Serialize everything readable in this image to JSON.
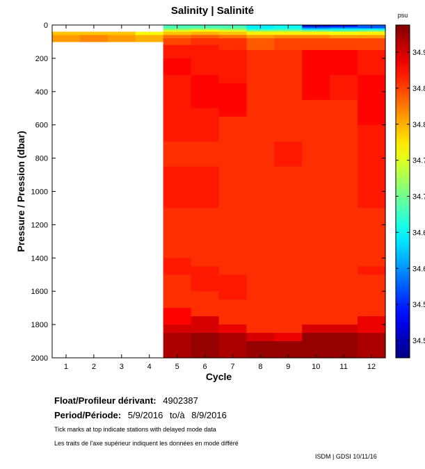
{
  "chart_data": {
    "type": "heatmap",
    "title": "Salinity | Salinité",
    "xlabel": "Cycle",
    "ylabel": "Pressure / Pression (dbar)",
    "colorbar_unit": "psu",
    "x": [
      1,
      2,
      3,
      4,
      5,
      6,
      7,
      8,
      9,
      10,
      11,
      12
    ],
    "xlim": [
      0.5,
      12.5
    ],
    "ylim": [
      0,
      2000
    ],
    "y_inverted": true,
    "y_ticks": [
      0,
      200,
      400,
      600,
      800,
      1000,
      1200,
      1400,
      1600,
      1800,
      2000
    ],
    "colorbar_tick_labels": [
      "34.9",
      "34.8",
      "34.8",
      "34.7",
      "34.7",
      "34.6",
      "34.6",
      "34.5",
      "34.5"
    ],
    "colorbar_range": [
      34.5,
      34.97
    ],
    "grid": false,
    "columns": [
      {
        "cycle": 1,
        "segments": [
          [
            40,
            60,
            34.82
          ],
          [
            60,
            100,
            34.84
          ]
        ]
      },
      {
        "cycle": 2,
        "segments": [
          [
            40,
            60,
            34.82
          ],
          [
            60,
            100,
            34.85
          ]
        ]
      },
      {
        "cycle": 3,
        "segments": [
          [
            40,
            60,
            34.82
          ],
          [
            60,
            100,
            34.84
          ]
        ]
      },
      {
        "cycle": 4,
        "segments": [
          [
            40,
            60,
            34.79
          ],
          [
            60,
            100,
            34.83
          ]
        ]
      },
      {
        "cycle": 5,
        "segments": [
          [
            0,
            20,
            34.71
          ],
          [
            20,
            30,
            34.74
          ],
          [
            30,
            40,
            34.78
          ],
          [
            40,
            60,
            34.82
          ],
          [
            60,
            80,
            34.86
          ],
          [
            80,
            120,
            34.88
          ],
          [
            120,
            200,
            34.9
          ],
          [
            200,
            300,
            34.91
          ],
          [
            300,
            450,
            34.9
          ],
          [
            450,
            700,
            34.9
          ],
          [
            700,
            850,
            34.89
          ],
          [
            850,
            1100,
            34.9
          ],
          [
            1100,
            1400,
            34.89
          ],
          [
            1400,
            1500,
            34.9
          ],
          [
            1500,
            1700,
            34.89
          ],
          [
            1700,
            1800,
            34.91
          ],
          [
            1800,
            1850,
            34.93
          ],
          [
            1850,
            2000,
            34.95
          ]
        ]
      },
      {
        "cycle": 6,
        "segments": [
          [
            0,
            20,
            34.71
          ],
          [
            20,
            30,
            34.75
          ],
          [
            30,
            40,
            34.79
          ],
          [
            40,
            60,
            34.83
          ],
          [
            60,
            80,
            34.87
          ],
          [
            80,
            120,
            34.89
          ],
          [
            120,
            300,
            34.9
          ],
          [
            300,
            500,
            34.91
          ],
          [
            500,
            700,
            34.9
          ],
          [
            700,
            850,
            34.89
          ],
          [
            850,
            1100,
            34.9
          ],
          [
            1100,
            1450,
            34.89
          ],
          [
            1450,
            1600,
            34.9
          ],
          [
            1600,
            1750,
            34.89
          ],
          [
            1750,
            1850,
            34.93
          ],
          [
            1850,
            2000,
            34.96
          ]
        ]
      },
      {
        "cycle": 7,
        "segments": [
          [
            0,
            20,
            34.71
          ],
          [
            20,
            30,
            34.74
          ],
          [
            30,
            40,
            34.78
          ],
          [
            40,
            60,
            34.82
          ],
          [
            60,
            80,
            34.86
          ],
          [
            80,
            150,
            34.89
          ],
          [
            150,
            350,
            34.9
          ],
          [
            350,
            550,
            34.91
          ],
          [
            550,
            1500,
            34.89
          ],
          [
            1500,
            1650,
            34.9
          ],
          [
            1650,
            1800,
            34.89
          ],
          [
            1800,
            1850,
            34.92
          ],
          [
            1850,
            2000,
            34.95
          ]
        ]
      },
      {
        "cycle": 8,
        "segments": [
          [
            0,
            20,
            34.67
          ],
          [
            20,
            30,
            34.69
          ],
          [
            30,
            40,
            34.74
          ],
          [
            40,
            60,
            34.8
          ],
          [
            60,
            80,
            34.84
          ],
          [
            80,
            150,
            34.87
          ],
          [
            150,
            200,
            34.89
          ],
          [
            200,
            1850,
            34.89
          ],
          [
            1850,
            1900,
            34.93
          ],
          [
            1900,
            2000,
            34.96
          ]
        ]
      },
      {
        "cycle": 9,
        "segments": [
          [
            0,
            20,
            34.68
          ],
          [
            20,
            30,
            34.7
          ],
          [
            30,
            40,
            34.74
          ],
          [
            40,
            60,
            34.8
          ],
          [
            60,
            80,
            34.85
          ],
          [
            80,
            150,
            34.88
          ],
          [
            150,
            300,
            34.89
          ],
          [
            300,
            700,
            34.89
          ],
          [
            700,
            850,
            34.9
          ],
          [
            850,
            1850,
            34.89
          ],
          [
            1850,
            1900,
            34.92
          ],
          [
            1900,
            2000,
            34.96
          ]
        ]
      },
      {
        "cycle": 10,
        "segments": [
          [
            0,
            10,
            34.53
          ],
          [
            10,
            20,
            34.6
          ],
          [
            20,
            30,
            34.66
          ],
          [
            30,
            40,
            34.73
          ],
          [
            40,
            60,
            34.8
          ],
          [
            60,
            80,
            34.85
          ],
          [
            80,
            150,
            34.88
          ],
          [
            150,
            300,
            34.91
          ],
          [
            300,
            450,
            34.91
          ],
          [
            450,
            1800,
            34.89
          ],
          [
            1800,
            1850,
            34.93
          ],
          [
            1850,
            2000,
            34.96
          ]
        ]
      },
      {
        "cycle": 11,
        "segments": [
          [
            0,
            10,
            34.55
          ],
          [
            10,
            20,
            34.61
          ],
          [
            20,
            30,
            34.67
          ],
          [
            30,
            40,
            34.72
          ],
          [
            40,
            60,
            34.79
          ],
          [
            60,
            80,
            34.84
          ],
          [
            80,
            150,
            34.88
          ],
          [
            150,
            300,
            34.91
          ],
          [
            300,
            450,
            34.9
          ],
          [
            450,
            1800,
            34.89
          ],
          [
            1800,
            1850,
            34.93
          ],
          [
            1850,
            2000,
            34.96
          ]
        ]
      },
      {
        "cycle": 12,
        "segments": [
          [
            0,
            20,
            34.6
          ],
          [
            20,
            30,
            34.67
          ],
          [
            30,
            40,
            34.73
          ],
          [
            40,
            60,
            34.8
          ],
          [
            60,
            80,
            34.84
          ],
          [
            80,
            150,
            34.88
          ],
          [
            150,
            300,
            34.9
          ],
          [
            300,
            450,
            34.91
          ],
          [
            450,
            600,
            34.91
          ],
          [
            600,
            1100,
            34.9
          ],
          [
            1100,
            1450,
            34.89
          ],
          [
            1450,
            1500,
            34.9
          ],
          [
            1500,
            1750,
            34.89
          ],
          [
            1750,
            1850,
            34.92
          ],
          [
            1850,
            2000,
            34.95
          ]
        ]
      }
    ]
  },
  "info": {
    "float_label": "Float/Profileur dérivant:",
    "float_id": "4902387",
    "period_label": "Period/Période:",
    "period_start": "5/9/2016",
    "period_to": "to/à",
    "period_end": "8/9/2016",
    "note_en": "Tick marks at top indicate stations with delayed mode data",
    "note_fr": "Les traits de l'axe supérieur indiquent les données en mode différé",
    "credit": "ISDM | GDSI  10/11/16"
  }
}
